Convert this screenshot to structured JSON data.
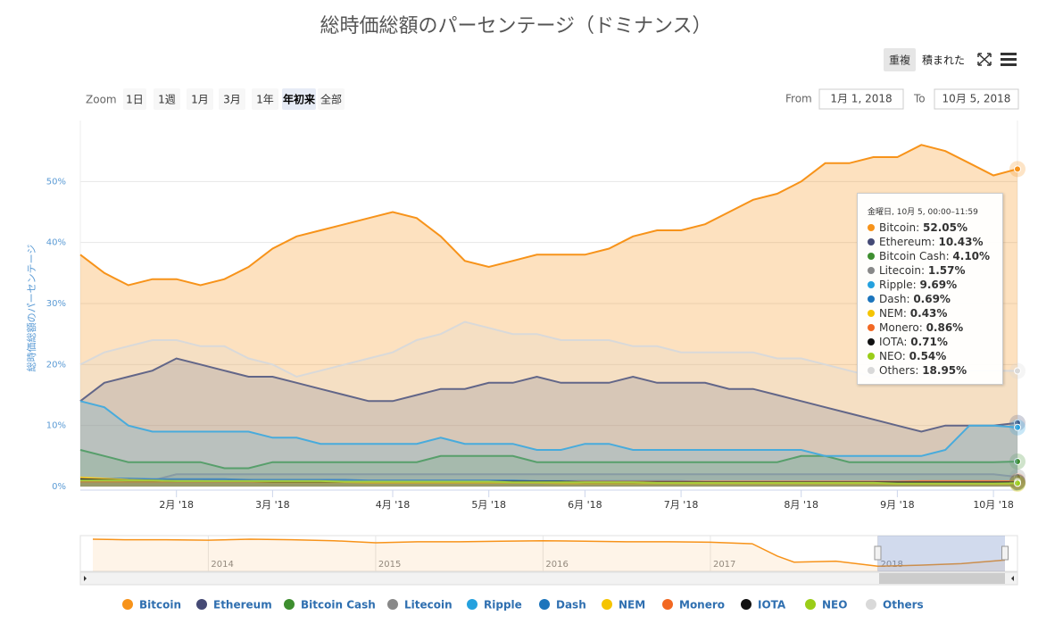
{
  "chart_data": {
    "type": "area",
    "title": "総時価総額のパーセンテージ（ドミナンス）",
    "y_axis_title": "総時価総額のパーセンテージ",
    "categories": [
      null,
      null,
      null,
      null,
      "2月 '18",
      null,
      null,
      null,
      "3月 '18",
      null,
      null,
      null,
      null,
      "4月 '18",
      null,
      null,
      null,
      "5月 '18",
      null,
      null,
      null,
      "6月 '18",
      null,
      null,
      null,
      "7月 '18",
      null,
      null,
      null,
      null,
      "8月 '18",
      null,
      null,
      null,
      "9月 '18",
      null,
      null,
      null,
      "10月 '18",
      null
    ],
    "ylim": [
      0,
      60
    ],
    "yticks": [
      {
        "value": 0,
        "label": "0%"
      },
      {
        "value": 10,
        "label": "10%"
      },
      {
        "value": 20,
        "label": "20%"
      },
      {
        "value": 30,
        "label": "30%"
      },
      {
        "value": 40,
        "label": "40%"
      },
      {
        "value": 50,
        "label": "50%"
      }
    ],
    "grid": true,
    "series": [
      {
        "name": "Bitcoin",
        "color": "#f7931a",
        "values": [
          38,
          35,
          33,
          34,
          34,
          33,
          34,
          36,
          39,
          41,
          42,
          43,
          44,
          45,
          44,
          41,
          37,
          36,
          37,
          38,
          38,
          38,
          39,
          41,
          42,
          42,
          43,
          45,
          47,
          48,
          50,
          53,
          53,
          54,
          54,
          56,
          55,
          53,
          51,
          52.05
        ]
      },
      {
        "name": "Ethereum",
        "color": "#454a75",
        "values": [
          14,
          17,
          18,
          19,
          21,
          20,
          19,
          18,
          18,
          17,
          16,
          15,
          14,
          14,
          15,
          16,
          16,
          17,
          17,
          18,
          17,
          17,
          17,
          18,
          17,
          17,
          17,
          16,
          16,
          15,
          14,
          13,
          12,
          11,
          10,
          9,
          10,
          10,
          10,
          10.43
        ]
      },
      {
        "name": "Bitcoin Cash",
        "color": "#3e8e2f",
        "values": [
          6,
          5,
          4,
          4,
          4,
          4,
          3,
          3,
          4,
          4,
          4,
          4,
          4,
          4,
          4,
          5,
          5,
          5,
          5,
          4,
          4,
          4,
          4,
          4,
          4,
          4,
          4,
          4,
          4,
          4,
          5,
          5,
          4,
          4,
          4,
          4,
          4,
          4,
          4,
          4.1
        ]
      },
      {
        "name": "Litecoin",
        "color": "#888888",
        "values": [
          1,
          1,
          1,
          1,
          2,
          2,
          2,
          2,
          2,
          2,
          2,
          2,
          2,
          2,
          2,
          2,
          2,
          2,
          2,
          2,
          2,
          2,
          2,
          2,
          2,
          2,
          2,
          2,
          2,
          2,
          2,
          2,
          2,
          2,
          2,
          2,
          2,
          2,
          2,
          1.57
        ]
      },
      {
        "name": "Ripple",
        "color": "#25a1de",
        "values": [
          14,
          13,
          10,
          9,
          9,
          9,
          9,
          9,
          8,
          8,
          7,
          7,
          7,
          7,
          7,
          8,
          7,
          7,
          7,
          6,
          6,
          7,
          7,
          6,
          6,
          6,
          6,
          6,
          6,
          6,
          6,
          5,
          5,
          5,
          5,
          5,
          6,
          10,
          10,
          9.69
        ]
      },
      {
        "name": "Dash",
        "color": "#1c75bc",
        "values": [
          1.3,
          1.3,
          1.3,
          1.2,
          1.2,
          1.2,
          1.2,
          1.1,
          1.1,
          1.1,
          1.1,
          1.1,
          1,
          1,
          1,
          1,
          1,
          1,
          1,
          0.9,
          0.9,
          0.9,
          0.9,
          0.9,
          0.9,
          0.9,
          0.8,
          0.8,
          0.8,
          0.8,
          0.8,
          0.8,
          0.7,
          0.7,
          0.7,
          0.7,
          0.7,
          0.7,
          0.7,
          0.69
        ]
      },
      {
        "name": "NEM",
        "color": "#f5c400",
        "values": [
          1.5,
          1.3,
          1.1,
          1,
          0.9,
          0.9,
          0.8,
          0.8,
          0.7,
          0.7,
          0.7,
          0.7,
          0.6,
          0.6,
          0.6,
          0.6,
          0.6,
          0.6,
          0.6,
          0.6,
          0.5,
          0.5,
          0.5,
          0.5,
          0.5,
          0.5,
          0.5,
          0.5,
          0.5,
          0.5,
          0.5,
          0.5,
          0.5,
          0.5,
          0.4,
          0.4,
          0.4,
          0.4,
          0.4,
          0.43
        ]
      },
      {
        "name": "Monero",
        "color": "#f26822",
        "values": [
          0.8,
          0.8,
          0.8,
          0.8,
          0.8,
          0.8,
          0.8,
          0.8,
          0.8,
          0.8,
          0.8,
          0.8,
          0.8,
          0.8,
          0.8,
          0.8,
          0.8,
          0.8,
          0.8,
          0.8,
          0.8,
          0.8,
          0.8,
          0.8,
          0.8,
          0.8,
          0.8,
          0.8,
          0.8,
          0.8,
          0.8,
          0.8,
          0.8,
          0.8,
          0.8,
          0.9,
          0.9,
          0.9,
          0.9,
          0.86
        ]
      },
      {
        "name": "IOTA",
        "color": "#111111",
        "values": [
          1.2,
          1.1,
          1,
          1,
          0.9,
          0.9,
          0.9,
          0.9,
          0.8,
          0.8,
          0.8,
          0.8,
          0.8,
          0.8,
          0.8,
          0.8,
          0.8,
          0.8,
          0.8,
          0.8,
          0.8,
          0.7,
          0.7,
          0.7,
          0.7,
          0.7,
          0.7,
          0.7,
          0.7,
          0.7,
          0.7,
          0.7,
          0.7,
          0.7,
          0.7,
          0.7,
          0.7,
          0.7,
          0.7,
          0.71
        ]
      },
      {
        "name": "NEO",
        "color": "#9acd18",
        "values": [
          1,
          1,
          1,
          1,
          0.9,
          0.9,
          0.9,
          0.9,
          0.9,
          0.9,
          0.9,
          0.8,
          0.8,
          0.8,
          0.8,
          0.8,
          0.8,
          0.8,
          0.7,
          0.7,
          0.7,
          0.7,
          0.7,
          0.7,
          0.6,
          0.6,
          0.6,
          0.6,
          0.6,
          0.6,
          0.6,
          0.6,
          0.6,
          0.6,
          0.5,
          0.5,
          0.5,
          0.5,
          0.5,
          0.54
        ]
      },
      {
        "name": "Others",
        "color": "#d9d9d9",
        "values": [
          20,
          22,
          23,
          24,
          24,
          23,
          23,
          21,
          20,
          18,
          19,
          20,
          21,
          22,
          24,
          25,
          27,
          26,
          25,
          25,
          24,
          24,
          24,
          23,
          23,
          22,
          22,
          22,
          22,
          21,
          21,
          20,
          19,
          18,
          18,
          18,
          19,
          19,
          19,
          18.95
        ]
      }
    ],
    "tooltip": {
      "header": "金曜日, 10月 5, 00:00–11:59",
      "value_labels": [
        "52.05%",
        "10.43%",
        "4.10%",
        "1.57%",
        "9.69%",
        "0.69%",
        "0.43%",
        "0.86%",
        "0.71%",
        "0.54%",
        "18.95%"
      ]
    }
  },
  "ui": {
    "mode_buttons": [
      "重複",
      "積まれた"
    ],
    "zoom_label": "Zoom",
    "zoom_buttons": [
      "1日",
      "1週",
      "1月",
      "3月",
      "1年",
      "年初来",
      "全部"
    ],
    "selected_zoom": 5,
    "from_label": "From",
    "from": "1月 1, 2018",
    "to_label": "To",
    "to": "10月 5, 2018"
  },
  "navigator": {
    "type": "line",
    "color": "#f7931a",
    "x": [
      2013.31,
      2013.5,
      2013.75,
      2014,
      2014.25,
      2014.5,
      2014.75,
      2015,
      2015.25,
      2015.5,
      2015.75,
      2016,
      2016.25,
      2016.5,
      2016.75,
      2017,
      2017.25,
      2017.4,
      2017.5,
      2017.75,
      2018,
      2018.25,
      2018.5,
      2018.76
    ],
    "values": [
      93,
      92,
      92,
      91,
      93,
      92,
      90,
      86,
      88,
      88,
      89,
      90,
      89,
      88,
      88,
      87,
      84,
      60,
      48,
      50,
      40,
      42,
      45,
      52
    ],
    "xlim": [
      2013.31,
      2018.76
    ],
    "ylim": [
      30,
      100
    ],
    "xticks": [
      2014,
      2015,
      2016,
      2017,
      2018
    ],
    "selection": [
      2018,
      2018.76
    ]
  }
}
